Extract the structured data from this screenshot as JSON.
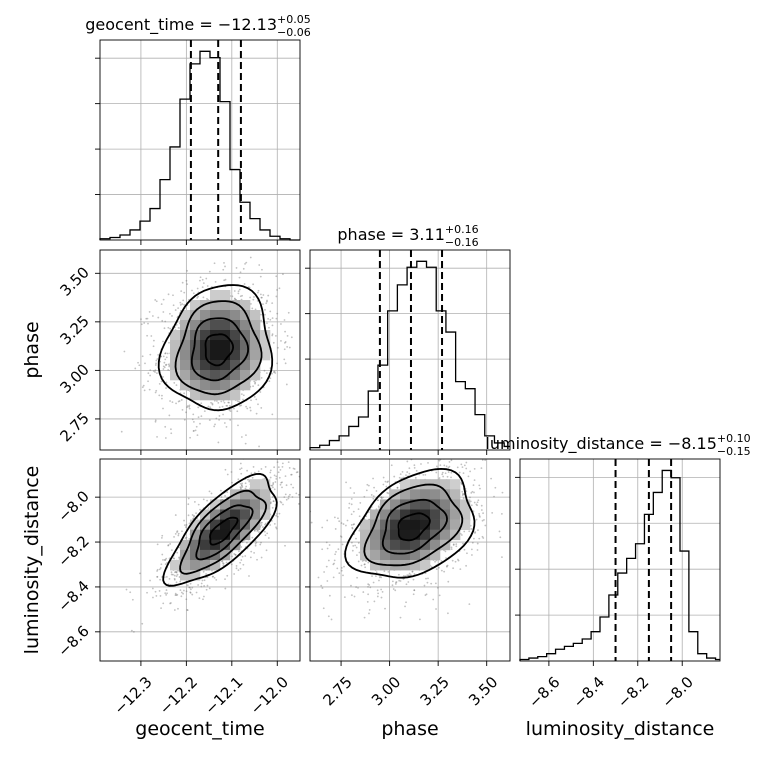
{
  "chart_data": [
    {
      "type": "histogram",
      "parameter": "geocent_time",
      "title": {
        "base": "geocent_time = −12.13",
        "sup": "+0.05",
        "sub": "−0.06"
      },
      "xlim": [
        -12.39,
        -11.95
      ],
      "bins": [
        -12.39,
        -12.368,
        -12.346,
        -12.324,
        -12.302,
        -12.28,
        -12.258,
        -12.236,
        -12.214,
        -12.192,
        -12.17,
        -12.148,
        -12.126,
        -12.104,
        -12.082,
        -12.06,
        -12.038,
        -12.016,
        -11.994,
        -11.972,
        -11.95
      ],
      "counts": [
        1,
        2,
        4,
        8,
        15,
        25,
        48,
        74,
        112,
        140,
        150,
        145,
        110,
        56,
        30,
        17,
        8,
        3,
        1,
        0
      ],
      "quantiles": [
        -12.19,
        -12.13,
        -12.08
      ],
      "xticks": [
        -12.3,
        -12.2,
        -12.1,
        -12.0
      ],
      "xticklabels": [
        "−12.3",
        "−12.2",
        "−12.1",
        "−12.0"
      ],
      "xlabel": "geocent_time"
    },
    {
      "type": "scatter-density",
      "x_parameter": "geocent_time",
      "y_parameter": "phase",
      "center": [
        -12.13,
        3.11
      ],
      "sd": [
        0.06,
        0.16
      ],
      "correlation": 0.1,
      "xlim": [
        -12.39,
        -11.95
      ],
      "ylim": [
        2.59,
        3.62
      ],
      "yticks": [
        2.75,
        3.0,
        3.25,
        3.5
      ],
      "yticklabels": [
        "2.75",
        "3.00",
        "3.25",
        "3.50"
      ],
      "ylabel": "phase"
    },
    {
      "type": "histogram",
      "parameter": "phase",
      "title": {
        "base": "phase = 3.11",
        "sup": "+0.16",
        "sub": "−0.16"
      },
      "xlim": [
        2.59,
        3.62
      ],
      "bins": [
        2.59,
        2.64,
        2.69,
        2.74,
        2.79,
        2.84,
        2.89,
        2.94,
        2.99,
        3.04,
        3.09,
        3.14,
        3.19,
        3.24,
        3.29,
        3.34,
        3.39,
        3.44,
        3.49,
        3.54,
        3.59,
        3.62
      ],
      "counts": [
        2,
        4,
        8,
        12,
        20,
        28,
        50,
        72,
        118,
        140,
        155,
        160,
        155,
        118,
        100,
        58,
        52,
        30,
        12,
        6,
        3
      ],
      "quantiles": [
        2.95,
        3.11,
        3.27
      ],
      "xticks": [
        2.75,
        3.0,
        3.25,
        3.5
      ],
      "xticklabels": [
        "2.75",
        "3.00",
        "3.25",
        "3.50"
      ],
      "xlabel": "phase"
    },
    {
      "type": "scatter-density",
      "x_parameter": "geocent_time",
      "y_parameter": "luminosity_distance",
      "center": [
        -12.12,
        -8.15
      ],
      "sd": [
        0.06,
        0.12
      ],
      "correlation": 0.72,
      "xlim": [
        -12.39,
        -11.95
      ],
      "ylim": [
        -8.73,
        -7.83
      ],
      "yticks": [
        -8.0,
        -8.2,
        -8.4,
        -8.6
      ],
      "yticklabels": [
        "−8.0",
        "−8.2",
        "−8.4",
        "−8.6"
      ],
      "ylabel": "luminosity_distance"
    },
    {
      "type": "scatter-density",
      "x_parameter": "phase",
      "y_parameter": "luminosity_distance",
      "center": [
        3.12,
        -8.13
      ],
      "sd": [
        0.16,
        0.12
      ],
      "correlation": 0.35,
      "xlim": [
        2.59,
        3.62
      ],
      "ylim": [
        -8.73,
        -7.83
      ]
    },
    {
      "type": "histogram",
      "parameter": "luminosity_distance",
      "title": {
        "base": "luminosity_distance = −8.15",
        "sup": "+0.10",
        "sub": "−0.15"
      },
      "xlim": [
        -8.73,
        -7.83
      ],
      "bins": [
        -8.73,
        -8.69,
        -8.65,
        -8.61,
        -8.57,
        -8.53,
        -8.49,
        -8.45,
        -8.41,
        -8.37,
        -8.33,
        -8.29,
        -8.25,
        -8.21,
        -8.17,
        -8.13,
        -8.09,
        -8.05,
        -8.01,
        -7.97,
        -7.93,
        -7.89,
        -7.85,
        -7.83
      ],
      "counts": [
        1,
        2,
        3,
        5,
        8,
        10,
        12,
        15,
        20,
        30,
        45,
        60,
        70,
        80,
        100,
        115,
        130,
        125,
        75,
        20,
        5,
        2,
        1
      ],
      "quantiles": [
        -8.3,
        -8.15,
        -8.05
      ],
      "xticks": [
        -8.6,
        -8.4,
        -8.2,
        -8.0
      ],
      "xticklabels": [
        "−8.6",
        "−8.4",
        "−8.2",
        "−8.0"
      ],
      "xlabel": "luminosity_distance"
    }
  ]
}
